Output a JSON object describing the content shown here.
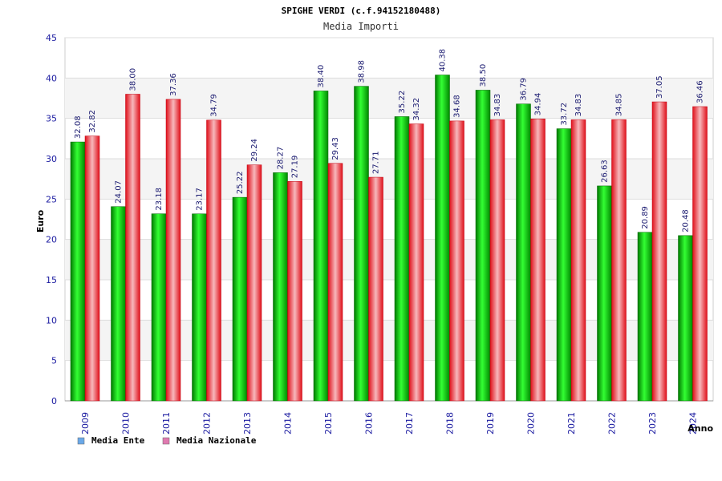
{
  "chart_data": {
    "type": "bar",
    "title": "SPIGHE VERDI (c.f.94152180488)",
    "subtitle": "Media Importi",
    "xlabel": "Anno",
    "ylabel": "Euro",
    "ylim": [
      0,
      45
    ],
    "yticks": [
      0,
      5,
      10,
      15,
      20,
      25,
      30,
      35,
      40,
      45
    ],
    "grid": true,
    "legend_position": "bottom-left",
    "categories": [
      "2009",
      "2010",
      "2011",
      "2012",
      "2013",
      "2014",
      "2015",
      "2016",
      "2017",
      "2018",
      "2019",
      "2020",
      "2021",
      "2022",
      "2023",
      "2024"
    ],
    "series": [
      {
        "name": "Media Ente",
        "color": "#00b800",
        "legend_color": "#6aa8e8",
        "values": [
          32.08,
          24.07,
          23.18,
          23.17,
          25.22,
          28.27,
          38.4,
          38.98,
          35.22,
          40.38,
          38.5,
          36.79,
          33.72,
          26.63,
          20.89,
          20.48
        ],
        "labels": [
          "32.08",
          "24.07",
          "23.18",
          "23.17",
          "25.22",
          "28.27",
          "38.40",
          "38.98",
          "35.22",
          "40.38",
          "38.50",
          "36.79",
          "33.72",
          "26.63",
          "20.89",
          "20.48"
        ]
      },
      {
        "name": "Media Nazionale",
        "color": "#e8222e",
        "legend_color": "#e07ab0",
        "values": [
          32.82,
          38.0,
          37.36,
          34.79,
          29.24,
          27.19,
          29.43,
          27.71,
          34.32,
          34.68,
          34.83,
          34.94,
          34.83,
          34.85,
          37.05,
          36.46
        ],
        "labels": [
          "32.82",
          "38.00",
          "37.36",
          "34.79",
          "29.24",
          "27.19",
          "29.43",
          "27.71",
          "34.32",
          "34.68",
          "34.83",
          "34.94",
          "34.83",
          "34.85",
          "37.05",
          "36.46"
        ]
      }
    ]
  }
}
